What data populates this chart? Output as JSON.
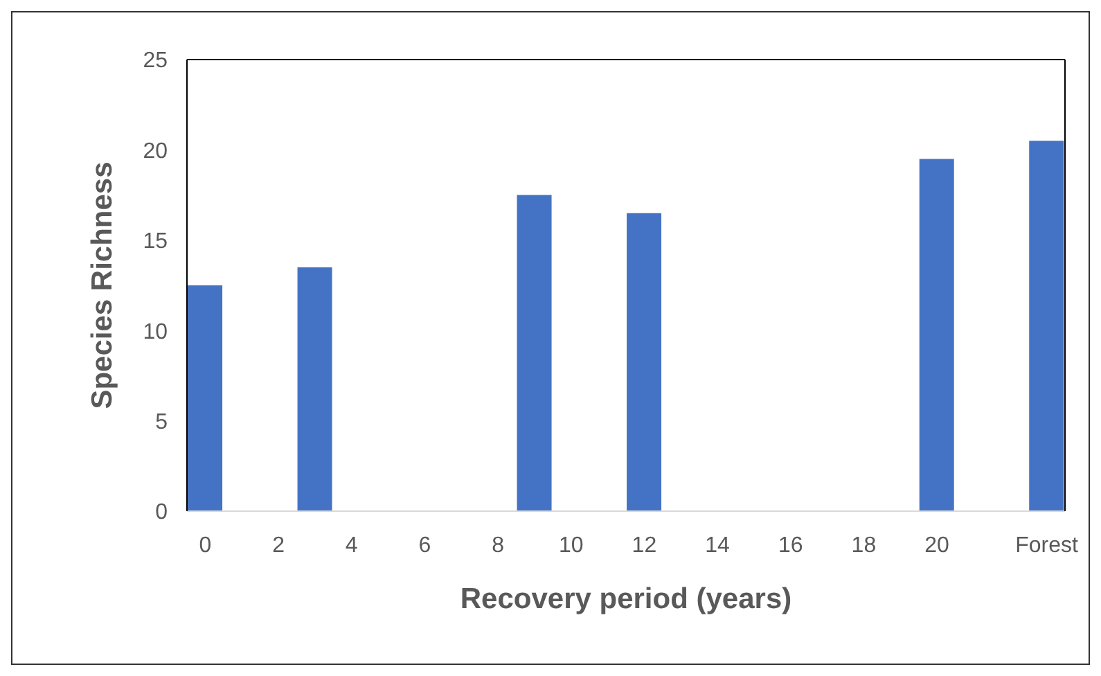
{
  "chart_data": {
    "type": "bar",
    "xlabel": "Recovery period (years)",
    "ylabel": "Species Richness",
    "categories": [
      "0",
      null,
      "2",
      null,
      "4",
      null,
      "6",
      null,
      "8",
      null,
      "10",
      null,
      "12",
      null,
      "14",
      null,
      "16",
      null,
      "18",
      null,
      "20",
      null,
      null,
      "Forest"
    ],
    "values": [
      12.5,
      null,
      null,
      13.5,
      null,
      null,
      null,
      null,
      null,
      17.5,
      null,
      null,
      16.5,
      null,
      null,
      null,
      null,
      null,
      null,
      null,
      19.5,
      null,
      null,
      20.5
    ],
    "color": "#4472c4",
    "ylim": [
      0,
      25
    ],
    "yticks": [
      0,
      5,
      10,
      15,
      20,
      25
    ],
    "grid": false
  }
}
